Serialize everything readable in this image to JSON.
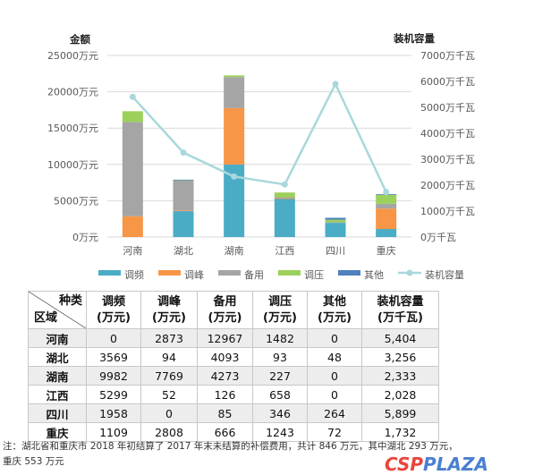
{
  "chart_data": {
    "type": "bar",
    "stacked": true,
    "categories": [
      "河南",
      "湖北",
      "湖南",
      "江西",
      "四川",
      "重庆"
    ],
    "left_axis": {
      "title": "金额",
      "range": [
        0,
        25000
      ],
      "ticks": [
        "0万元",
        "5000万元",
        "10000万元",
        "15000万元",
        "20000万元",
        "25000万元"
      ]
    },
    "right_axis": {
      "title": "装机容量",
      "range": [
        0,
        7000
      ],
      "ticks": [
        "0万千瓦",
        "1000万千瓦",
        "2000万千瓦",
        "3000万千瓦",
        "4000万千瓦",
        "5000万千瓦",
        "6000万千瓦",
        "7000万千瓦"
      ]
    },
    "series": [
      {
        "name": "调频",
        "color": "#4bacc6",
        "values": [
          0,
          3569,
          9982,
          5299,
          1958,
          1109
        ]
      },
      {
        "name": "调峰",
        "color": "#f79646",
        "values": [
          2873,
          94,
          7769,
          52,
          0,
          2808
        ]
      },
      {
        "name": "备用",
        "color": "#a5a5a5",
        "values": [
          12967,
          4093,
          4273,
          126,
          85,
          666
        ]
      },
      {
        "name": "调压",
        "color": "#9bd15a",
        "values": [
          1482,
          93,
          227,
          658,
          346,
          1243
        ]
      },
      {
        "name": "其他",
        "color": "#4f81bd",
        "values": [
          0,
          48,
          0,
          0,
          264,
          72
        ]
      }
    ],
    "line": {
      "name": "装机容量",
      "color": "#a8d8dc",
      "values": [
        5404,
        3256,
        2333,
        2028,
        5899,
        1732
      ]
    },
    "grid": true,
    "legend": "bottom"
  },
  "table": {
    "corner_top": "种类",
    "corner_bottom": "区域",
    "headers": [
      [
        "调频",
        "(万元)"
      ],
      [
        "调峰",
        "(万元)"
      ],
      [
        "备用",
        "(万元)"
      ],
      [
        "调压",
        "(万元)"
      ],
      [
        "其他",
        "(万元)"
      ],
      [
        "装机容量",
        "(万千瓦)"
      ]
    ],
    "rows": [
      [
        "河南",
        "0",
        "2873",
        "12967",
        "1482",
        "0",
        "5,404"
      ],
      [
        "湖北",
        "3569",
        "94",
        "4093",
        "93",
        "48",
        "3,256"
      ],
      [
        "湖南",
        "9982",
        "7769",
        "4273",
        "227",
        "0",
        "2,333"
      ],
      [
        "江西",
        "5299",
        "52",
        "126",
        "658",
        "0",
        "2,028"
      ],
      [
        "四川",
        "1958",
        "0",
        "85",
        "346",
        "264",
        "5,899"
      ],
      [
        "重庆",
        "1109",
        "2808",
        "666",
        "1243",
        "72",
        "1,732"
      ]
    ]
  },
  "note": {
    "line1": "注：湖北省和重庆市 2018 年初结算了 2017 年末未结算的补偿费用，共计 846 万元，其中湖北 293 万元，",
    "line2": "重庆 553 万元"
  },
  "watermark": {
    "c": "CSP",
    "p": "PLAZA"
  }
}
